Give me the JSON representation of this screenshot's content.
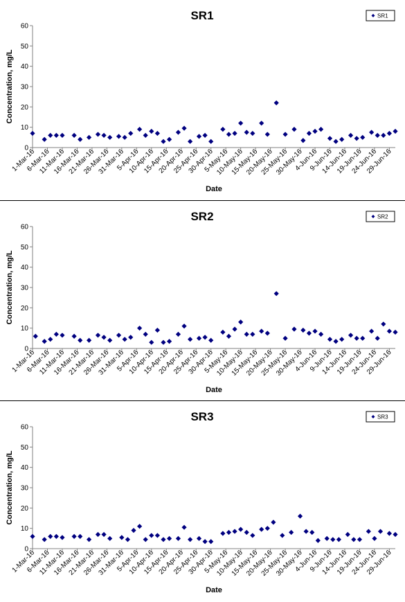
{
  "colors": {
    "marker": "#000080",
    "axis": "#808080",
    "background": "#ffffff",
    "border": "#000000"
  },
  "chart_data": [
    {
      "type": "scatter",
      "title": "SR1",
      "xlabel": "Date",
      "ylabel": "Concentration, mg/L",
      "xlim": [
        "2016-03-01",
        "2016-07-01"
      ],
      "ylim": [
        0,
        60
      ],
      "yticks": [
        0,
        10,
        20,
        30,
        40,
        50,
        60
      ],
      "xtick_dates": [
        "2016-03-01",
        "2016-03-06",
        "2016-03-11",
        "2016-03-16",
        "2016-03-21",
        "2016-03-26",
        "2016-03-31",
        "2016-04-05",
        "2016-04-10",
        "2016-04-15",
        "2016-04-20",
        "2016-04-25",
        "2016-04-30",
        "2016-05-05",
        "2016-05-10",
        "2016-05-15",
        "2016-05-20",
        "2016-05-25",
        "2016-05-30",
        "2016-06-04",
        "2016-06-09",
        "2016-06-14",
        "2016-06-19",
        "2016-06-24",
        "2016-06-29"
      ],
      "xtick_labels": [
        "1-Mar-16",
        "6-Mar-16",
        "11-Mar-16",
        "16-Mar-16",
        "21-Mar-16",
        "26-Mar-16",
        "31-Mar-16",
        "5-Apr-16",
        "10-Apr-16",
        "15-Apr-16",
        "20-Apr-16",
        "25-Apr-16",
        "30-Apr-16",
        "5-May-16",
        "10-May-16",
        "15-May-16",
        "20-May-16",
        "25-May-16",
        "30-May-16",
        "4-Jun-16",
        "9-Jun-16",
        "14-Jun-16",
        "19-Jun-16",
        "24-Jun-16",
        "29-Jun-16"
      ],
      "legend": "top-right",
      "grid": false,
      "series": [
        {
          "name": "SR1",
          "points": [
            {
              "x": "2016-03-01",
              "y": 7
            },
            {
              "x": "2016-03-05",
              "y": 4
            },
            {
              "x": "2016-03-07",
              "y": 6
            },
            {
              "x": "2016-03-09",
              "y": 6
            },
            {
              "x": "2016-03-11",
              "y": 6
            },
            {
              "x": "2016-03-15",
              "y": 6
            },
            {
              "x": "2016-03-17",
              "y": 4
            },
            {
              "x": "2016-03-20",
              "y": 5
            },
            {
              "x": "2016-03-23",
              "y": 6.5
            },
            {
              "x": "2016-03-25",
              "y": 6
            },
            {
              "x": "2016-03-27",
              "y": 5
            },
            {
              "x": "2016-03-30",
              "y": 5.5
            },
            {
              "x": "2016-04-01",
              "y": 5
            },
            {
              "x": "2016-04-03",
              "y": 7
            },
            {
              "x": "2016-04-06",
              "y": 9
            },
            {
              "x": "2016-04-08",
              "y": 6
            },
            {
              "x": "2016-04-10",
              "y": 8
            },
            {
              "x": "2016-04-12",
              "y": 7
            },
            {
              "x": "2016-04-14",
              "y": 3
            },
            {
              "x": "2016-04-16",
              "y": 4
            },
            {
              "x": "2016-04-19",
              "y": 7.5
            },
            {
              "x": "2016-04-21",
              "y": 9.5
            },
            {
              "x": "2016-04-23",
              "y": 3
            },
            {
              "x": "2016-04-26",
              "y": 5.5
            },
            {
              "x": "2016-04-28",
              "y": 6
            },
            {
              "x": "2016-04-30",
              "y": 3
            },
            {
              "x": "2016-05-04",
              "y": 9
            },
            {
              "x": "2016-05-06",
              "y": 6.5
            },
            {
              "x": "2016-05-08",
              "y": 7
            },
            {
              "x": "2016-05-10",
              "y": 12
            },
            {
              "x": "2016-05-12",
              "y": 7.5
            },
            {
              "x": "2016-05-14",
              "y": 7
            },
            {
              "x": "2016-05-17",
              "y": 12
            },
            {
              "x": "2016-05-19",
              "y": 6.5
            },
            {
              "x": "2016-05-22",
              "y": 22
            },
            {
              "x": "2016-05-25",
              "y": 6.5
            },
            {
              "x": "2016-05-28",
              "y": 9
            },
            {
              "x": "2016-05-31",
              "y": 3.5
            },
            {
              "x": "2016-06-02",
              "y": 7
            },
            {
              "x": "2016-06-04",
              "y": 8
            },
            {
              "x": "2016-06-06",
              "y": 9
            },
            {
              "x": "2016-06-09",
              "y": 4.5
            },
            {
              "x": "2016-06-11",
              "y": 3
            },
            {
              "x": "2016-06-13",
              "y": 4
            },
            {
              "x": "2016-06-16",
              "y": 6
            },
            {
              "x": "2016-06-18",
              "y": 4.5
            },
            {
              "x": "2016-06-20",
              "y": 5
            },
            {
              "x": "2016-06-23",
              "y": 7.5
            },
            {
              "x": "2016-06-25",
              "y": 6
            },
            {
              "x": "2016-06-27",
              "y": 6
            },
            {
              "x": "2016-06-29",
              "y": 7
            },
            {
              "x": "2016-07-01",
              "y": 8
            }
          ]
        }
      ]
    },
    {
      "type": "scatter",
      "title": "SR2",
      "xlabel": "Date",
      "ylabel": "Concentration, mg/L",
      "xlim": [
        "2016-03-01",
        "2016-07-01"
      ],
      "ylim": [
        0,
        60
      ],
      "yticks": [
        0,
        10,
        20,
        30,
        40,
        50,
        60
      ],
      "xtick_dates": [
        "2016-03-01",
        "2016-03-06",
        "2016-03-11",
        "2016-03-16",
        "2016-03-21",
        "2016-03-26",
        "2016-03-31",
        "2016-04-05",
        "2016-04-10",
        "2016-04-15",
        "2016-04-20",
        "2016-04-25",
        "2016-04-30",
        "2016-05-05",
        "2016-05-10",
        "2016-05-15",
        "2016-05-20",
        "2016-05-25",
        "2016-05-30",
        "2016-06-04",
        "2016-06-09",
        "2016-06-14",
        "2016-06-19",
        "2016-06-24",
        "2016-06-29"
      ],
      "xtick_labels": [
        "1-Mar-16",
        "6-Mar-16",
        "11-Mar-16",
        "16-Mar-16",
        "21-Mar-16",
        "26-Mar-16",
        "31-Mar-16",
        "5-Apr-16",
        "10-Apr-16",
        "15-Apr-16",
        "20-Apr-16",
        "25-Apr-16",
        "30-Apr-16",
        "5-May-16",
        "10-May-16",
        "15-May-16",
        "20-May-16",
        "25-May-16",
        "30-May-16",
        "4-Jun-16",
        "9-Jun-16",
        "14-Jun-16",
        "19-Jun-16",
        "24-Jun-16",
        "29-Jun-16"
      ],
      "legend": "top-right",
      "grid": false,
      "series": [
        {
          "name": "SR2",
          "points": [
            {
              "x": "2016-03-02",
              "y": 6
            },
            {
              "x": "2016-03-05",
              "y": 3.5
            },
            {
              "x": "2016-03-07",
              "y": 4.5
            },
            {
              "x": "2016-03-09",
              "y": 7
            },
            {
              "x": "2016-03-11",
              "y": 6.5
            },
            {
              "x": "2016-03-15",
              "y": 6
            },
            {
              "x": "2016-03-17",
              "y": 4
            },
            {
              "x": "2016-03-20",
              "y": 4
            },
            {
              "x": "2016-03-23",
              "y": 6.5
            },
            {
              "x": "2016-03-25",
              "y": 5.5
            },
            {
              "x": "2016-03-27",
              "y": 4
            },
            {
              "x": "2016-03-30",
              "y": 6.5
            },
            {
              "x": "2016-04-01",
              "y": 4.5
            },
            {
              "x": "2016-04-03",
              "y": 5.5
            },
            {
              "x": "2016-04-06",
              "y": 10
            },
            {
              "x": "2016-04-08",
              "y": 7
            },
            {
              "x": "2016-04-10",
              "y": 3
            },
            {
              "x": "2016-04-12",
              "y": 9
            },
            {
              "x": "2016-04-14",
              "y": 3
            },
            {
              "x": "2016-04-16",
              "y": 3.5
            },
            {
              "x": "2016-04-19",
              "y": 7
            },
            {
              "x": "2016-04-21",
              "y": 11
            },
            {
              "x": "2016-04-23",
              "y": 4.5
            },
            {
              "x": "2016-04-26",
              "y": 5
            },
            {
              "x": "2016-04-28",
              "y": 5.5
            },
            {
              "x": "2016-04-30",
              "y": 4
            },
            {
              "x": "2016-05-04",
              "y": 8
            },
            {
              "x": "2016-05-06",
              "y": 6
            },
            {
              "x": "2016-05-08",
              "y": 9.5
            },
            {
              "x": "2016-05-10",
              "y": 13
            },
            {
              "x": "2016-05-12",
              "y": 7
            },
            {
              "x": "2016-05-14",
              "y": 7
            },
            {
              "x": "2016-05-17",
              "y": 8.5
            },
            {
              "x": "2016-05-19",
              "y": 7.5
            },
            {
              "x": "2016-05-22",
              "y": 27
            },
            {
              "x": "2016-05-25",
              "y": 5
            },
            {
              "x": "2016-05-28",
              "y": 9.5
            },
            {
              "x": "2016-05-31",
              "y": 9
            },
            {
              "x": "2016-06-02",
              "y": 7.5
            },
            {
              "x": "2016-06-04",
              "y": 8.5
            },
            {
              "x": "2016-06-06",
              "y": 7
            },
            {
              "x": "2016-06-09",
              "y": 4.5
            },
            {
              "x": "2016-06-11",
              "y": 3.5
            },
            {
              "x": "2016-06-13",
              "y": 4.5
            },
            {
              "x": "2016-06-16",
              "y": 6.5
            },
            {
              "x": "2016-06-18",
              "y": 5
            },
            {
              "x": "2016-06-20",
              "y": 5
            },
            {
              "x": "2016-06-23",
              "y": 8.5
            },
            {
              "x": "2016-06-25",
              "y": 5
            },
            {
              "x": "2016-06-27",
              "y": 12
            },
            {
              "x": "2016-06-29",
              "y": 8.5
            },
            {
              "x": "2016-07-01",
              "y": 8
            }
          ]
        }
      ]
    },
    {
      "type": "scatter",
      "title": "SR3",
      "xlabel": "Date",
      "ylabel": "Concentration, mg/L",
      "xlim": [
        "2016-03-01",
        "2016-07-01"
      ],
      "ylim": [
        0,
        60
      ],
      "yticks": [
        0,
        10,
        20,
        30,
        40,
        50,
        60
      ],
      "xtick_dates": [
        "2016-03-01",
        "2016-03-06",
        "2016-03-11",
        "2016-03-16",
        "2016-03-21",
        "2016-03-26",
        "2016-03-31",
        "2016-04-05",
        "2016-04-10",
        "2016-04-15",
        "2016-04-20",
        "2016-04-25",
        "2016-04-30",
        "2016-05-05",
        "2016-05-10",
        "2016-05-15",
        "2016-05-20",
        "2016-05-25",
        "2016-05-30",
        "2016-06-04",
        "2016-06-09",
        "2016-06-14",
        "2016-06-19",
        "2016-06-24",
        "2016-06-29"
      ],
      "xtick_labels": [
        "1-Mar-16",
        "6-Mar-16",
        "11-Mar-16",
        "16-Mar-16",
        "21-Mar-16",
        "26-Mar-16",
        "31-Mar-16",
        "5-Apr-16",
        "10-Apr-16",
        "15-Apr-16",
        "20-Apr-16",
        "25-Apr-16",
        "30-Apr-16",
        "5-May-16",
        "10-May-16",
        "15-May-16",
        "20-May-16",
        "25-May-16",
        "30-May-16",
        "4-Jun-16",
        "9-Jun-16",
        "14-Jun-16",
        "19-Jun-16",
        "24-Jun-16",
        "29-Jun-16"
      ],
      "legend": "top-right",
      "grid": false,
      "series": [
        {
          "name": "SR3",
          "points": [
            {
              "x": "2016-03-01",
              "y": 6
            },
            {
              "x": "2016-03-05",
              "y": 4.5
            },
            {
              "x": "2016-03-07",
              "y": 6
            },
            {
              "x": "2016-03-09",
              "y": 6
            },
            {
              "x": "2016-03-11",
              "y": 5.5
            },
            {
              "x": "2016-03-15",
              "y": 6
            },
            {
              "x": "2016-03-17",
              "y": 6
            },
            {
              "x": "2016-03-20",
              "y": 4.5
            },
            {
              "x": "2016-03-23",
              "y": 7
            },
            {
              "x": "2016-03-25",
              "y": 7
            },
            {
              "x": "2016-03-27",
              "y": 5
            },
            {
              "x": "2016-03-31",
              "y": 5.5
            },
            {
              "x": "2016-04-02",
              "y": 4.5
            },
            {
              "x": "2016-04-04",
              "y": 9
            },
            {
              "x": "2016-04-06",
              "y": 11
            },
            {
              "x": "2016-04-08",
              "y": 4.5
            },
            {
              "x": "2016-04-10",
              "y": 6.5
            },
            {
              "x": "2016-04-12",
              "y": 6.5
            },
            {
              "x": "2016-04-14",
              "y": 4.5
            },
            {
              "x": "2016-04-16",
              "y": 5
            },
            {
              "x": "2016-04-19",
              "y": 5
            },
            {
              "x": "2016-04-21",
              "y": 10.5
            },
            {
              "x": "2016-04-23",
              "y": 4.5
            },
            {
              "x": "2016-04-26",
              "y": 5
            },
            {
              "x": "2016-04-28",
              "y": 3.5
            },
            {
              "x": "2016-04-30",
              "y": 3.5
            },
            {
              "x": "2016-05-04",
              "y": 7.5
            },
            {
              "x": "2016-05-06",
              "y": 8
            },
            {
              "x": "2016-05-08",
              "y": 8.5
            },
            {
              "x": "2016-05-10",
              "y": 9.5
            },
            {
              "x": "2016-05-12",
              "y": 8
            },
            {
              "x": "2016-05-14",
              "y": 6.5
            },
            {
              "x": "2016-05-17",
              "y": 9.5
            },
            {
              "x": "2016-05-19",
              "y": 10
            },
            {
              "x": "2016-05-21",
              "y": 13
            },
            {
              "x": "2016-05-24",
              "y": 6.5
            },
            {
              "x": "2016-05-27",
              "y": 8
            },
            {
              "x": "2016-05-30",
              "y": 16
            },
            {
              "x": "2016-06-01",
              "y": 8.5
            },
            {
              "x": "2016-06-03",
              "y": 8
            },
            {
              "x": "2016-06-05",
              "y": 4
            },
            {
              "x": "2016-06-08",
              "y": 5
            },
            {
              "x": "2016-06-10",
              "y": 4.5
            },
            {
              "x": "2016-06-12",
              "y": 4.5
            },
            {
              "x": "2016-06-15",
              "y": 7
            },
            {
              "x": "2016-06-17",
              "y": 4.5
            },
            {
              "x": "2016-06-19",
              "y": 4.5
            },
            {
              "x": "2016-06-22",
              "y": 8.5
            },
            {
              "x": "2016-06-24",
              "y": 5
            },
            {
              "x": "2016-06-26",
              "y": 8.5
            },
            {
              "x": "2016-06-29",
              "y": 7.5
            },
            {
              "x": "2016-07-01",
              "y": 7
            }
          ]
        }
      ]
    }
  ]
}
